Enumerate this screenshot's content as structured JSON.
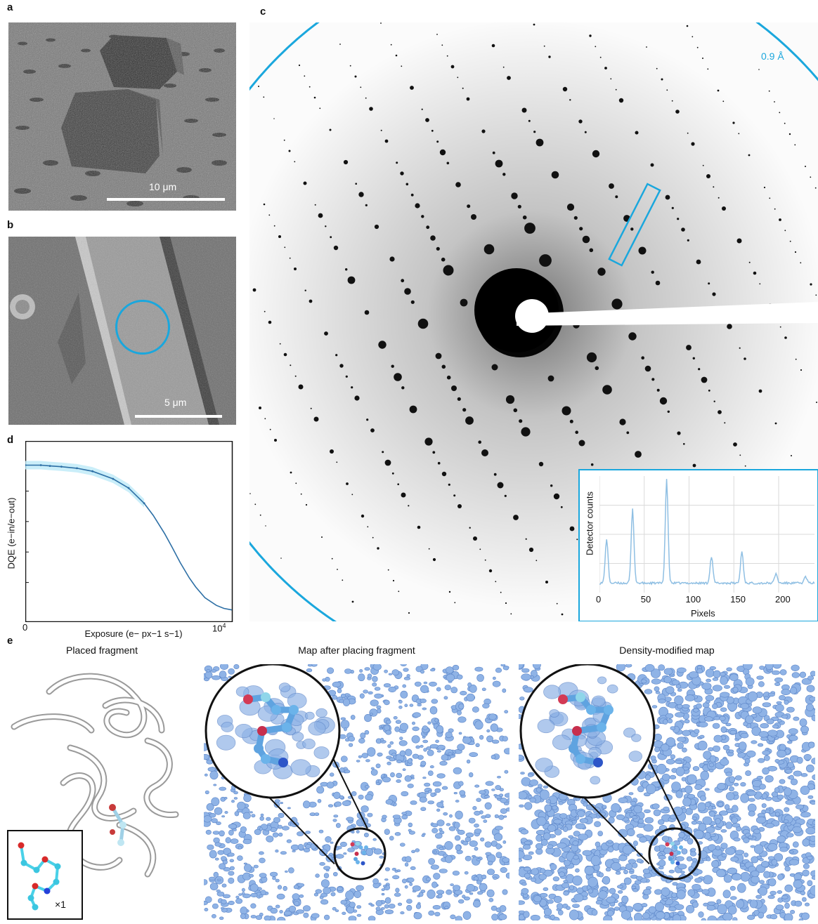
{
  "panels": {
    "a": {
      "label": "a",
      "scale": "10 μm"
    },
    "b": {
      "label": "b",
      "scale": "5 μm"
    },
    "c": {
      "label": "c",
      "resolution": "0.9 Å"
    },
    "d": {
      "label": "d"
    },
    "e": {
      "label": "e"
    }
  },
  "inset": {
    "ylabel": "Detector counts",
    "xlabel": "Pixels",
    "xticks": [
      "0",
      "50",
      "100",
      "150",
      "200"
    ]
  },
  "dqe": {
    "ylabel": "DQE (e−in/e−out)",
    "xlabel": "Exposure (e− px−1 s−1)",
    "x0": "0",
    "xmax": "10",
    "xmax_exp": "4"
  },
  "panel_e": {
    "titles": [
      "Placed fragment",
      "Map after placing fragment",
      "Density-modified map"
    ],
    "multiplier": "×1"
  },
  "colors": {
    "accent": "#1aa7dd",
    "map": "#8fb3e6",
    "map_dark": "#5d86c8"
  },
  "chart_data": [
    {
      "type": "line",
      "title": "",
      "xlabel": "Pixels",
      "ylabel": "Detector counts",
      "xlim": [
        0,
        240
      ],
      "x_ticks": [
        0,
        50,
        100,
        150,
        200
      ],
      "peaks": [
        {
          "x": 8,
          "y": 0.42
        },
        {
          "x": 37,
          "y": 0.7
        },
        {
          "x": 75,
          "y": 0.98
        },
        {
          "x": 125,
          "y": 0.25
        },
        {
          "x": 159,
          "y": 0.3
        },
        {
          "x": 197,
          "y": 0.09
        },
        {
          "x": 230,
          "y": 0.06
        }
      ],
      "baseline": 0.05,
      "grid": true
    },
    {
      "type": "line",
      "title": "",
      "xlabel": "Exposure (e− px−1 s−1)",
      "ylabel": "DQE (e−in/e−out)",
      "x_scale": "log",
      "xlim": [
        1,
        10000
      ],
      "ylim": [
        0,
        1
      ],
      "x": [
        1,
        2,
        3,
        5,
        10,
        20,
        50,
        100,
        200,
        300,
        500,
        700,
        1000,
        1500,
        2000,
        3000,
        5000,
        7000,
        10000
      ],
      "y": [
        0.97,
        0.97,
        0.965,
        0.96,
        0.95,
        0.93,
        0.88,
        0.82,
        0.72,
        0.64,
        0.52,
        0.43,
        0.33,
        0.23,
        0.17,
        0.1,
        0.05,
        0.03,
        0.02
      ]
    }
  ]
}
